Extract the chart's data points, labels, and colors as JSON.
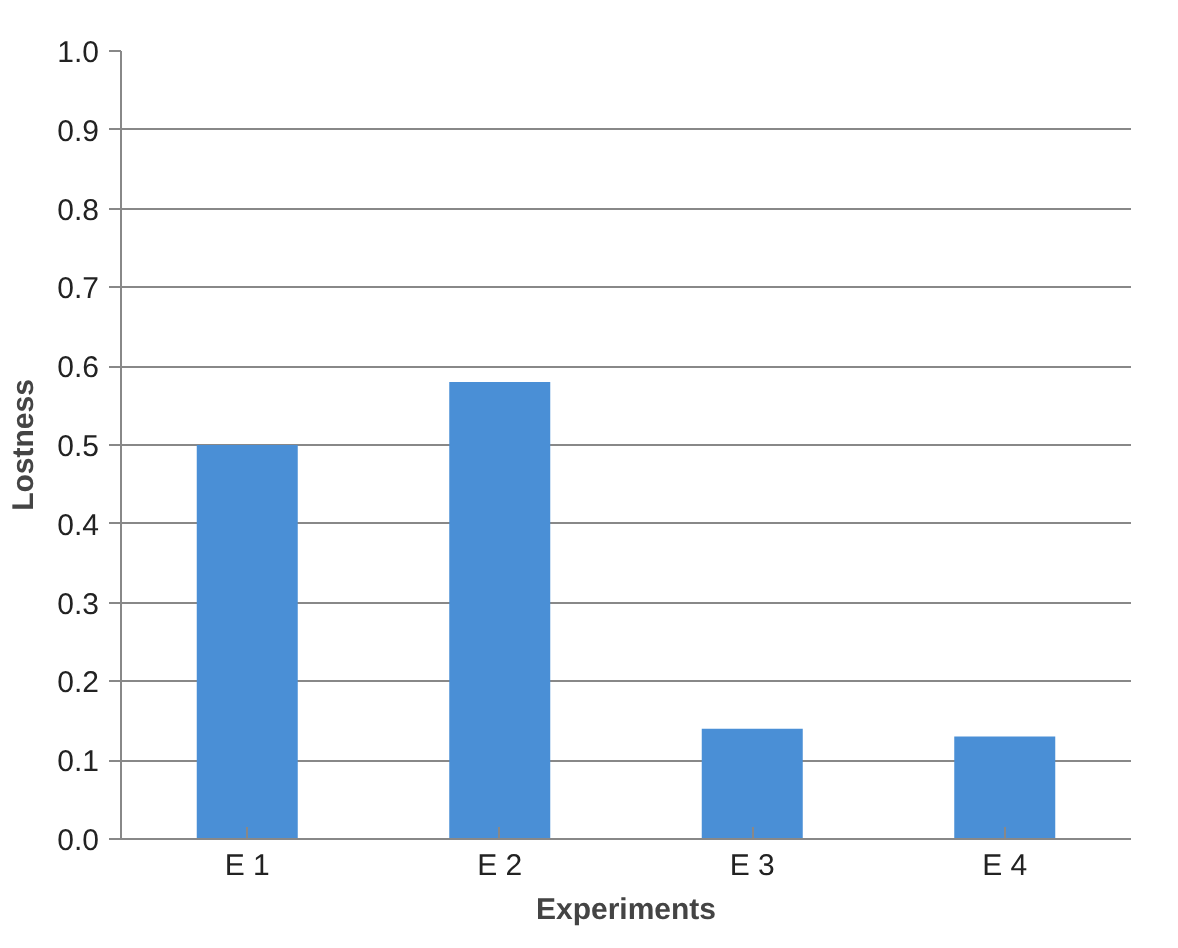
{
  "chart_data": {
    "type": "bar",
    "xlabel": "Experiments",
    "ylabel": "Lostness",
    "categories": [
      "E 1",
      "E 2",
      "E 3",
      "E 4"
    ],
    "values": [
      0.5,
      0.58,
      0.14,
      0.13
    ],
    "color": "#4a8fd6",
    "ylim": [
      0,
      1
    ],
    "yticks": [
      {
        "value": 0,
        "label": "0.0"
      },
      0.1,
      0.2,
      0.3,
      0.4,
      0.5,
      0.6,
      0.7,
      0.8,
      0.9,
      {
        "value": 1,
        "label": "1.0"
      }
    ],
    "grid": "y"
  }
}
